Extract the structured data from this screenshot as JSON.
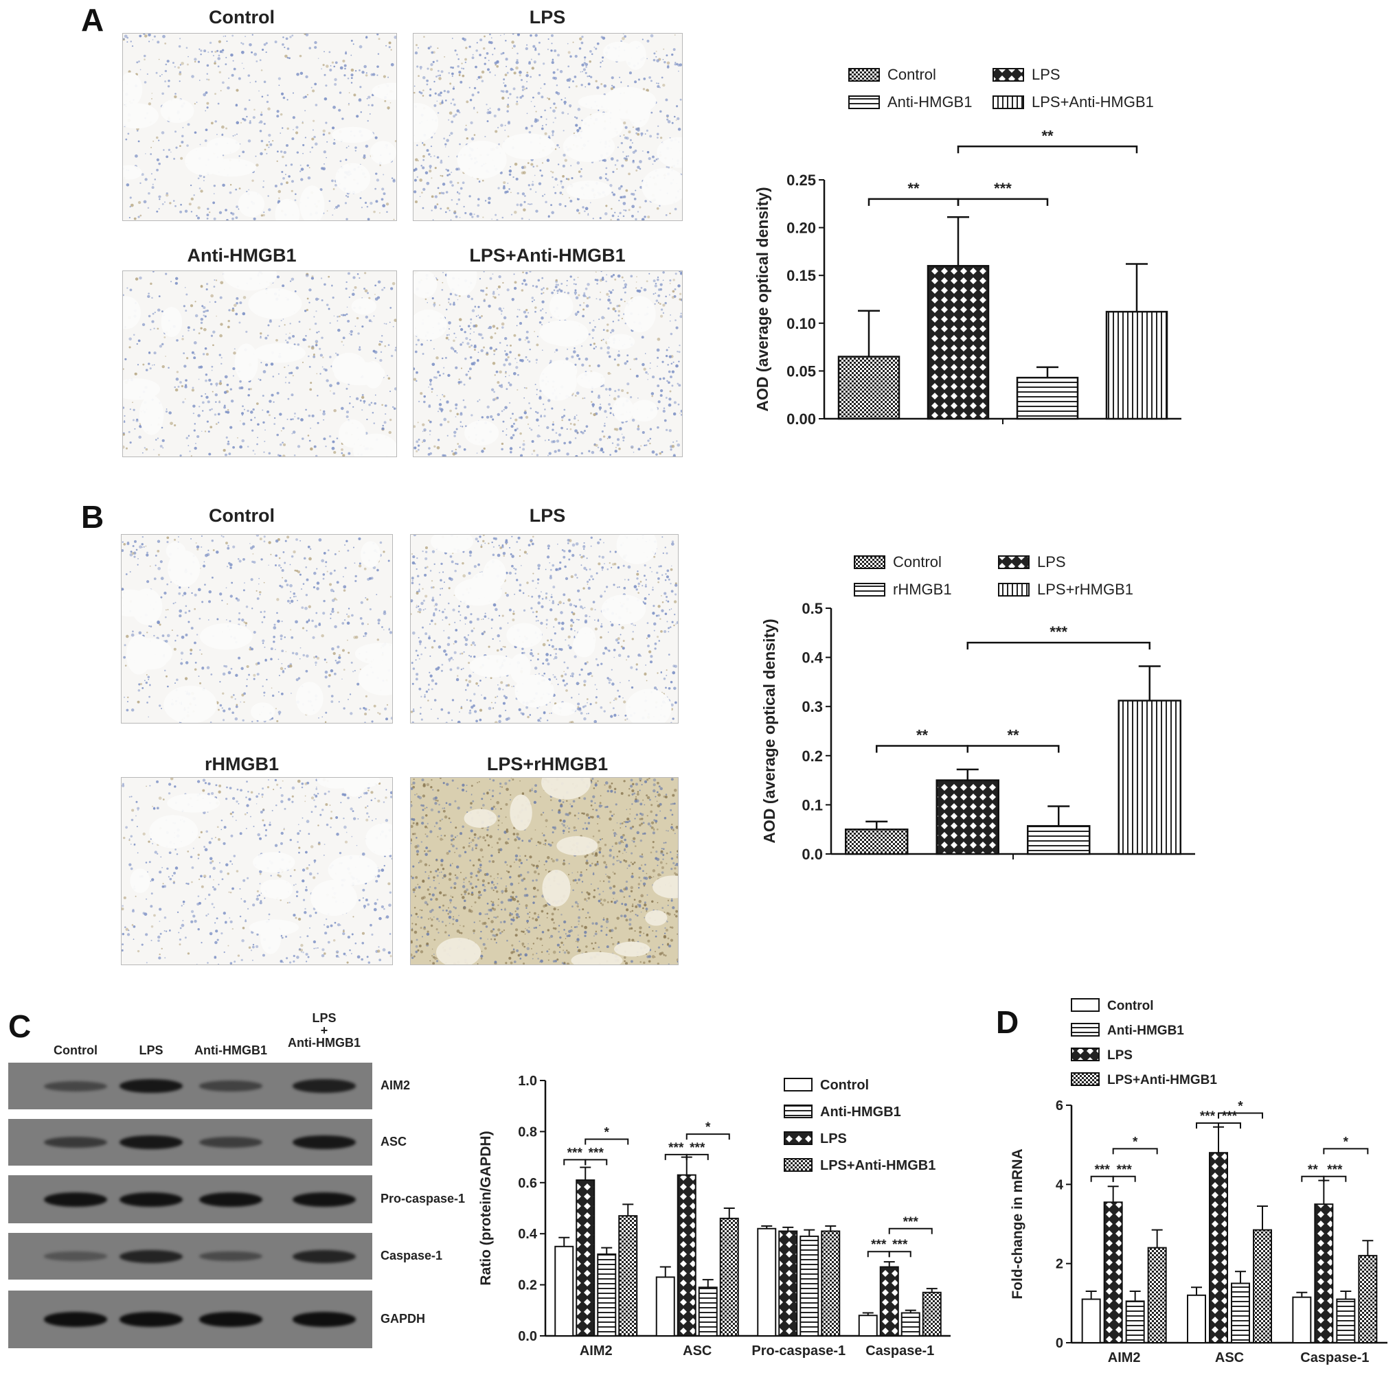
{
  "panels": {
    "A": {
      "letter": "A",
      "images": [
        {
          "label": "Control",
          "tone": "light"
        },
        {
          "label": "LPS",
          "tone": "dense"
        },
        {
          "label": "Anti-HMGB1",
          "tone": "light"
        },
        {
          "label": "LPS+Anti-HMGB1",
          "tone": "dense"
        }
      ]
    },
    "B": {
      "letter": "B",
      "images": [
        {
          "label": "Control",
          "tone": "light"
        },
        {
          "label": "LPS",
          "tone": "dense"
        },
        {
          "label": "rHMGB1",
          "tone": "light"
        },
        {
          "label": "LPS+rHMGB1",
          "tone": "brown"
        }
      ]
    },
    "C": {
      "letter": "C",
      "lanes": [
        "Control",
        "LPS",
        "Anti-HMGB1",
        "LPS\n+\nAnti-HMGB1"
      ],
      "blots": [
        {
          "label": "AIM2",
          "intensity": [
            0.3,
            0.85,
            0.35,
            0.75
          ]
        },
        {
          "label": "ASC",
          "intensity": [
            0.45,
            0.85,
            0.4,
            0.85
          ]
        },
        {
          "label": "Pro-caspase-1",
          "intensity": [
            0.9,
            0.9,
            0.9,
            0.9
          ]
        },
        {
          "label": "Caspase-1",
          "intensity": [
            0.15,
            0.7,
            0.25,
            0.7
          ]
        },
        {
          "label": "GAPDH",
          "intensity": [
            0.95,
            0.95,
            0.95,
            0.95
          ]
        }
      ]
    },
    "D": {
      "letter": "D"
    }
  },
  "chart_data": [
    {
      "panel": "A",
      "type": "bar",
      "categories": [
        "Control",
        "LPS",
        "Anti-HMGB1",
        "LPS+Anti-HMGB1"
      ],
      "values": [
        0.065,
        0.16,
        0.043,
        0.112
      ],
      "errors": [
        0.048,
        0.051,
        0.011,
        0.05
      ],
      "patterns": [
        "checker",
        "diamond",
        "hlines",
        "vlines"
      ],
      "ylabel": "AOD (average optical density)",
      "ylim": [
        0,
        0.25
      ],
      "yticks": [
        "0.00",
        "0.05",
        "0.10",
        "0.15",
        "0.20",
        "0.25"
      ],
      "legend": [
        {
          "label": "Control",
          "pattern": "checker"
        },
        {
          "label": "LPS",
          "pattern": "diamond"
        },
        {
          "label": "Anti-HMGB1",
          "pattern": "hlines"
        },
        {
          "label": "LPS+Anti-HMGB1",
          "pattern": "vlines"
        }
      ],
      "significance": [
        {
          "from": 0,
          "to": 1,
          "label": "**",
          "level": 0.23
        },
        {
          "from": 1,
          "to": 2,
          "label": "***",
          "level": 0.23
        },
        {
          "from": 1,
          "to": 3,
          "label": "**",
          "level": 0.285
        }
      ]
    },
    {
      "panel": "B",
      "type": "bar",
      "categories": [
        "Control",
        "LPS",
        "rHMGB1",
        "LPS+rHMGB1"
      ],
      "values": [
        0.05,
        0.15,
        0.057,
        0.312
      ],
      "errors": [
        0.016,
        0.022,
        0.04,
        0.07
      ],
      "patterns": [
        "checker",
        "diamond",
        "hlines",
        "vlines"
      ],
      "ylabel": "AOD (average optical density)",
      "ylim": [
        0,
        0.5
      ],
      "yticks": [
        "0.0",
        "0.1",
        "0.2",
        "0.3",
        "0.4",
        "0.5"
      ],
      "legend": [
        {
          "label": "Control",
          "pattern": "checker"
        },
        {
          "label": "LPS",
          "pattern": "diamond"
        },
        {
          "label": "rHMGB1",
          "pattern": "hlines"
        },
        {
          "label": "LPS+rHMGB1",
          "pattern": "vlines"
        }
      ],
      "significance": [
        {
          "from": 0,
          "to": 1,
          "label": "**",
          "level": 0.22
        },
        {
          "from": 1,
          "to": 2,
          "label": "**",
          "level": 0.22
        },
        {
          "from": 1,
          "to": 3,
          "label": "***",
          "level": 0.43
        }
      ]
    },
    {
      "panel": "C",
      "type": "bar",
      "categories": [
        "AIM2",
        "ASC",
        "Pro-caspase-1",
        "Caspase-1"
      ],
      "series": [
        {
          "name": "Control",
          "pattern": "white",
          "values": [
            0.35,
            0.23,
            0.42,
            0.08
          ],
          "errors": [
            0.035,
            0.04,
            0.01,
            0.01
          ]
        },
        {
          "name": "LPS",
          "pattern": "diamond",
          "values": [
            0.61,
            0.63,
            0.41,
            0.27
          ],
          "errors": [
            0.05,
            0.07,
            0.015,
            0.02
          ]
        },
        {
          "name": "Anti-HMGB1",
          "pattern": "hlines",
          "values": [
            0.32,
            0.19,
            0.39,
            0.09
          ],
          "errors": [
            0.025,
            0.03,
            0.025,
            0.01
          ]
        },
        {
          "name": "LPS+Anti-HMGB1",
          "pattern": "checker",
          "values": [
            0.47,
            0.46,
            0.41,
            0.17
          ],
          "errors": [
            0.045,
            0.04,
            0.02,
            0.015
          ]
        }
      ],
      "ylabel": "Ratio (protein/GAPDH)",
      "ylim": [
        0,
        1.0
      ],
      "yticks": [
        "0.0",
        "0.2",
        "0.4",
        "0.6",
        "0.8",
        "1.0"
      ],
      "legend": [
        {
          "label": "Control",
          "pattern": "white"
        },
        {
          "label": "Anti-HMGB1",
          "pattern": "hlines"
        },
        {
          "label": "LPS",
          "pattern": "diamond"
        },
        {
          "label": "LPS+Anti-HMGB1",
          "pattern": "checker"
        }
      ],
      "significance": [
        {
          "cat": 0,
          "from": 0,
          "to": 1,
          "label": "***",
          "level": 0.69
        },
        {
          "cat": 0,
          "from": 1,
          "to": 2,
          "label": "***",
          "level": 0.69
        },
        {
          "cat": 0,
          "from": 1,
          "to": 3,
          "label": "*",
          "level": 0.77
        },
        {
          "cat": 1,
          "from": 0,
          "to": 1,
          "label": "***",
          "level": 0.71
        },
        {
          "cat": 1,
          "from": 1,
          "to": 2,
          "label": "***",
          "level": 0.71
        },
        {
          "cat": 1,
          "from": 1,
          "to": 3,
          "label": "*",
          "level": 0.79
        },
        {
          "cat": 3,
          "from": 0,
          "to": 1,
          "label": "***",
          "level": 0.33
        },
        {
          "cat": 3,
          "from": 1,
          "to": 2,
          "label": "***",
          "level": 0.33
        },
        {
          "cat": 3,
          "from": 1,
          "to": 3,
          "label": "***",
          "level": 0.42
        }
      ]
    },
    {
      "panel": "D",
      "type": "bar",
      "categories": [
        "AIM2",
        "ASC",
        "Caspase-1"
      ],
      "series": [
        {
          "name": "Control",
          "pattern": "white",
          "values": [
            1.1,
            1.2,
            1.15
          ],
          "errors": [
            0.2,
            0.2,
            0.12
          ]
        },
        {
          "name": "LPS",
          "pattern": "diamond",
          "values": [
            3.55,
            4.8,
            3.5
          ],
          "errors": [
            0.4,
            0.65,
            0.6
          ]
        },
        {
          "name": "Anti-HMGB1",
          "pattern": "hlines",
          "values": [
            1.05,
            1.5,
            1.1
          ],
          "errors": [
            0.25,
            0.3,
            0.2
          ]
        },
        {
          "name": "LPS+Anti-HMGB1",
          "pattern": "checker",
          "values": [
            2.4,
            2.85,
            2.2
          ],
          "errors": [
            0.45,
            0.6,
            0.38
          ]
        }
      ],
      "ylabel": "Fold-change in mRNA",
      "ylim": [
        0,
        6
      ],
      "yticks": [
        "0",
        "2",
        "4",
        "6"
      ],
      "legend": [
        {
          "label": "Control",
          "pattern": "white"
        },
        {
          "label": "Anti-HMGB1",
          "pattern": "hlines"
        },
        {
          "label": "LPS",
          "pattern": "diamond"
        },
        {
          "label": "LPS+Anti-HMGB1",
          "pattern": "checker"
        }
      ],
      "significance": [
        {
          "cat": 0,
          "from": 0,
          "to": 1,
          "label": "***",
          "level": 4.2
        },
        {
          "cat": 0,
          "from": 1,
          "to": 2,
          "label": "***",
          "level": 4.2
        },
        {
          "cat": 0,
          "from": 1,
          "to": 3,
          "label": "*",
          "level": 4.9
        },
        {
          "cat": 1,
          "from": 0,
          "to": 1,
          "label": "***",
          "level": 5.55
        },
        {
          "cat": 1,
          "from": 1,
          "to": 2,
          "label": "***",
          "level": 5.55
        },
        {
          "cat": 1,
          "from": 1,
          "to": 3,
          "label": "*",
          "level": 5.8
        },
        {
          "cat": 2,
          "from": 0,
          "to": 1,
          "label": "**",
          "level": 4.2
        },
        {
          "cat": 2,
          "from": 1,
          "to": 2,
          "label": "***",
          "level": 4.2
        },
        {
          "cat": 2,
          "from": 1,
          "to": 3,
          "label": "*",
          "level": 4.9
        }
      ]
    }
  ]
}
